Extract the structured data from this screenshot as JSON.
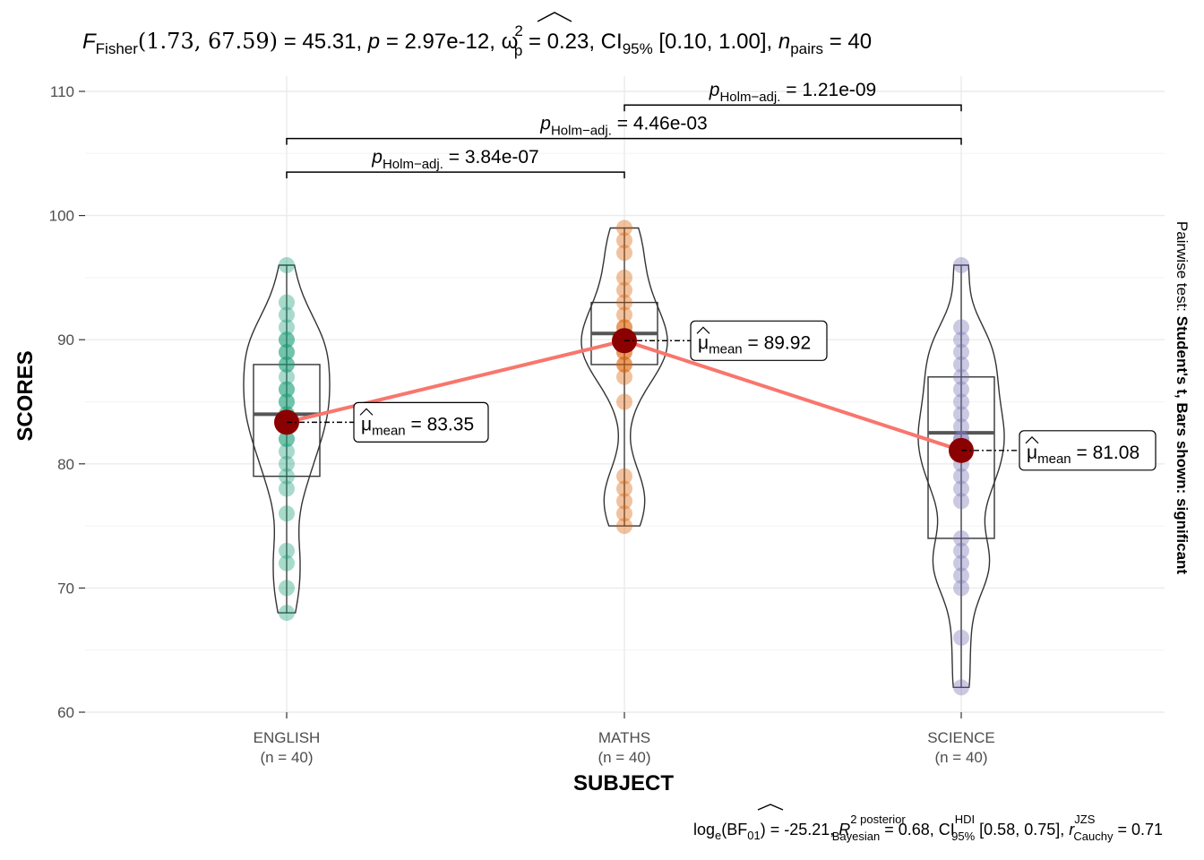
{
  "chart_data": {
    "type": "violin-box-scatter",
    "title_parts": {
      "F": "F",
      "F_sub": "Fisher",
      "df": "(1.73, 67.59)",
      "F_val": " = 45.31, ",
      "p": "p",
      "p_val": " = 2.97e-12, ",
      "omega": "ω",
      "omega_sup": "2",
      "omega_sub": "p",
      "omega_val": " = 0.23, CI",
      "ci_sub": "95%",
      "ci_val": " [0.10, 1.00], ",
      "n": "n",
      "n_sub": "pairs",
      "n_val": " = 40"
    },
    "xlabel": "SUBJECT",
    "ylabel": "SCORES",
    "right_label_plain": "Pairwise test: ",
    "right_label_bold": "Student's t, Bars shown: significant",
    "ylim": [
      60,
      110
    ],
    "yticks": [
      60,
      70,
      80,
      90,
      100,
      110
    ],
    "grid": true,
    "groups": [
      {
        "name": "ENGLISH",
        "n_label": "(n = 40)",
        "color": "#1B9E77",
        "mean": 83.35,
        "mean_label": " = 83.35",
        "box": {
          "q1": 79,
          "median": 84,
          "q3": 88,
          "whisker_low": 68,
          "whisker_high": 96
        },
        "points": [
          68,
          70,
          72,
          73,
          76,
          78,
          79,
          80,
          81,
          82,
          82,
          83,
          84,
          84,
          85,
          85,
          86,
          86,
          87,
          88,
          88,
          89,
          89,
          90,
          90,
          91,
          92,
          93,
          96
        ]
      },
      {
        "name": "MATHS",
        "n_label": "(n = 40)",
        "color": "#D95F02",
        "mean": 89.92,
        "mean_label": " = 89.92",
        "box": {
          "q1": 88,
          "median": 90.5,
          "q3": 93,
          "whisker_low": 75,
          "whisker_high": 99
        },
        "points": [
          75,
          76,
          77,
          78,
          79,
          85,
          87,
          88,
          88,
          89,
          89,
          90,
          90,
          91,
          91,
          92,
          93,
          94,
          95,
          97,
          98,
          99
        ]
      },
      {
        "name": "SCIENCE",
        "n_label": "(n = 40)",
        "color": "#7570B3",
        "mean": 81.08,
        "mean_label": " = 81.08",
        "box": {
          "q1": 74,
          "median": 82.5,
          "q3": 87,
          "whisker_low": 62,
          "whisker_high": 96
        },
        "points": [
          62,
          66,
          70,
          71,
          72,
          73,
          74,
          77,
          78,
          79,
          80,
          81,
          82,
          82,
          83,
          84,
          85,
          86,
          87,
          88,
          89,
          90,
          91,
          96
        ]
      }
    ],
    "pairwise": [
      {
        "from": 0,
        "to": 1,
        "y": 103.5,
        "label_prefix": "p",
        "label_sub": "Holm−adj.",
        "label_val": " = 3.84e-07"
      },
      {
        "from": 0,
        "to": 2,
        "y": 106.2,
        "label_prefix": "p",
        "label_sub": "Holm−adj.",
        "label_val": " = 4.46e-03"
      },
      {
        "from": 1,
        "to": 2,
        "y": 108.9,
        "label_prefix": "p",
        "label_sub": "Holm−adj.",
        "label_val": " = 1.21e-09"
      }
    ],
    "caption_parts": {
      "a": "log",
      "a_sub": "e",
      "b": "(BF",
      "b_sub": "01",
      "c": ") = -25.21, ",
      "r": "R",
      "r_sup": "2 posterior",
      "r_sub": "Bayesian",
      "d": " = 0.68, CI",
      "d_sup": "HDI",
      "d_sub": "95%",
      "e": " [0.58, 0.75], ",
      "rc": "r",
      "rc_sup": "JZS",
      "rc_sub": "Cauchy",
      "f": " = 0.71"
    },
    "mean_symbol": "μ",
    "mean_sub": "mean",
    "mean_line_color": "#F8766D",
    "mean_point_color": "#8B0000"
  }
}
